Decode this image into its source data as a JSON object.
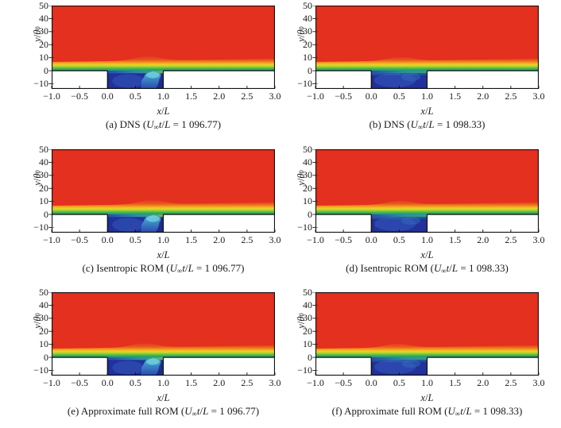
{
  "figure": {
    "background": "#ffffff",
    "axes": {
      "xlabel_x": "x",
      "slash": "/",
      "xlabel_L": "L",
      "ylabel_y": "y",
      "ylabel_theta": "θ",
      "ylabel_sub": "0",
      "x_tick_labels": [
        "−1.0",
        "−0.5",
        "0.0",
        "0.5",
        "1.0",
        "1.5",
        "2.0",
        "2.5",
        "3.0"
      ],
      "y_tick_labels": [
        "50",
        "40",
        "30",
        "20",
        "10",
        "0",
        "−10"
      ]
    },
    "caption_template": {
      "u": "U",
      "inf": "∞",
      "t": "t",
      "slash": "/",
      "L": "L",
      "eq": " = ",
      "close": ")"
    },
    "colors": {
      "freestream_red": "#e3301f",
      "band_stops": [
        "#e3301f",
        "#e85a1e",
        "#f29a20",
        "#f0cc24",
        "#c3d72f",
        "#79c43c",
        "#3fb24b",
        "#27a372",
        "#1d8e92"
      ],
      "cavity_base": "#22319b",
      "cavity_light": "#2c4ab0",
      "cavity_dark_edge": "#19266f",
      "plume_light": "#63c8db",
      "plume_mid": "#3f93c9",
      "mouth_teal": "#35ab87",
      "wall_line": "#111111",
      "mask_white": "#ffffff"
    }
  },
  "chart_data": {
    "type": "heatmap",
    "layout": "3 rows x 2 columns of contour snapshots of cavity flow",
    "xlabel": "x/L",
    "ylabel": "y/θ0",
    "xlim": [
      -1.0,
      3.0
    ],
    "ylim": [
      -14,
      50
    ],
    "x_ticks": [
      -1.0,
      -0.5,
      0.0,
      0.5,
      1.0,
      1.5,
      2.0,
      2.5,
      3.0
    ],
    "y_ticks": [
      50,
      40,
      30,
      20,
      10,
      0,
      -10
    ],
    "colormap": "rainbow: blue (low) through green/yellow to red (high)",
    "geometry": {
      "wall_y": 0,
      "cavity_x_range": [
        0.0,
        1.0
      ],
      "cavity_depth_to_plot_bottom": true,
      "solid_wall_regions_white": "y<0 for x<0 and x>1"
    },
    "field_description": "Freestream region (y>~8) uniform red; thin shear-layer band of orange/yellow/green hugging y=0; open cavity between x=0 and x=1 filled with dark blue recirculating fluid",
    "subplots": [
      {
        "index": "(a)",
        "method": "DNS",
        "caption_prefix": "(a) DNS (",
        "time_value": "1 096.77",
        "caption": "(a) DNS (U∞t/L = 1 096.77)",
        "cavity_state": "plume",
        "state_note": "cyan ejection plume rising near x ≈ 0.7–1.0; shear layer bulges above trailing cavity edge",
        "bump_x": 0.72,
        "bump_amp": 5.5
      },
      {
        "index": "(b)",
        "method": "DNS",
        "caption_prefix": "(b) DNS (",
        "time_value": "1 098.33",
        "caption": "(b) DNS (U∞t/L = 1 098.33)",
        "cavity_state": "uniform",
        "state_note": "cavity nearly uniform dark blue with teal shading along the mouth; mild shear-layer bump near x ≈ 0.5",
        "bump_x": 0.52,
        "bump_amp": 4.5
      },
      {
        "index": "(c)",
        "method": "Isentropic ROM",
        "caption_prefix": "(c) Isentropic ROM (",
        "time_value": "1 096.77",
        "caption": "(c) Isentropic ROM (U∞t/L = 1 096.77)",
        "cavity_state": "plume",
        "state_note": "cyan plume near x ≈ 0.75–1.0 similar to DNS snapshot (a)",
        "bump_x": 0.78,
        "bump_amp": 5.5
      },
      {
        "index": "(d)",
        "method": "Isentropic ROM",
        "caption_prefix": "(d) Isentropic ROM (",
        "time_value": "1 098.33",
        "caption": "(d) Isentropic ROM (U∞t/L = 1 098.33)",
        "cavity_state": "uniform",
        "state_note": "nearly uniform blue cavity, matches DNS snapshot (b)",
        "bump_x": 0.5,
        "bump_amp": 4.5
      },
      {
        "index": "(e)",
        "method": "Approximate full ROM",
        "caption_prefix": "(e) Approximate full ROM (",
        "time_value": "1 096.77",
        "caption": "(e) Approximate full ROM (U∞t/L = 1 096.77)",
        "cavity_state": "plume",
        "state_note": "cyan plume near x ≈ 0.65–1.0",
        "bump_x": 0.66,
        "bump_amp": 5.0
      },
      {
        "index": "(f)",
        "method": "Approximate full ROM",
        "caption_prefix": "(f) Approximate full ROM (",
        "time_value": "1 098.33",
        "caption": "(f) Approximate full ROM (U∞t/L = 1 098.33)",
        "cavity_state": "uniform",
        "state_note": "nearly uniform blue cavity",
        "bump_x": 0.46,
        "bump_amp": 4.5
      }
    ]
  }
}
